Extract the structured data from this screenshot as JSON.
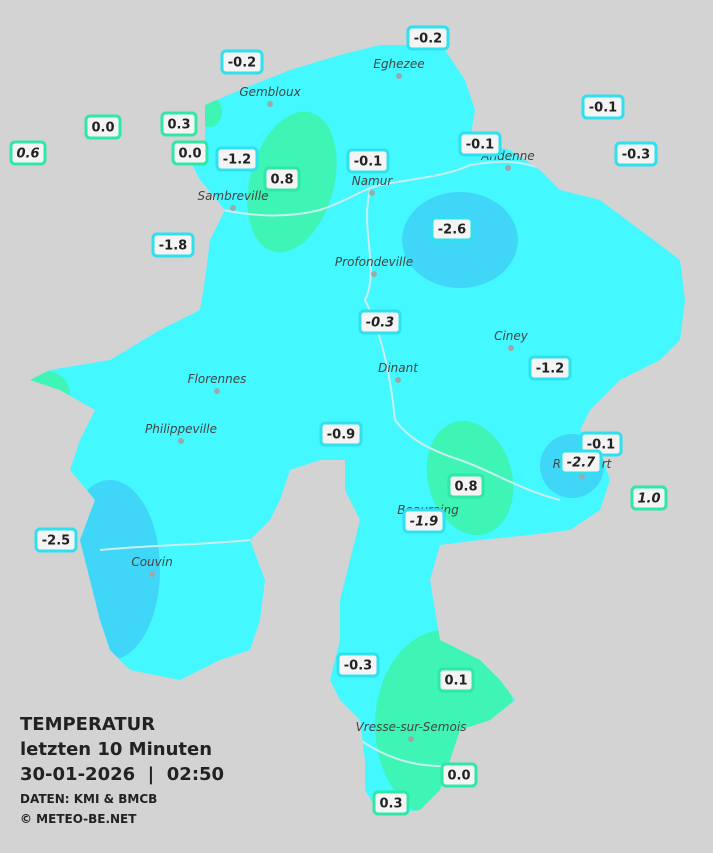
{
  "title": {
    "lines": [
      "TEMPERATUR",
      "letzten 10 Minuten",
      "30-01-2026  |  02:50"
    ]
  },
  "credits": [
    "DATEN: KMI & BMCB",
    "© METEO-BE.NET"
  ],
  "cities": [
    "Eghezee",
    "Gembloux",
    "Andenne",
    "Namur",
    "Sambreville",
    "Profondeville",
    "Ciney",
    "Dinant",
    "Florennes",
    "Philippeville",
    "Beauraing",
    "Rochefort",
    "Couvin",
    "Vresse-sur-Semois"
  ],
  "stations": [
    {
      "value": "-0.2",
      "border": "#2fe0ee",
      "italic": false
    },
    {
      "value": "-0.2",
      "border": "#2fe0ee",
      "italic": false
    },
    {
      "value": "0.0",
      "border": "#2fe8a6",
      "italic": false
    },
    {
      "value": "0.3",
      "border": "#2fe8a6",
      "italic": false
    },
    {
      "value": "0.0",
      "border": "#2fe8a6",
      "italic": false
    },
    {
      "value": "-1.2",
      "border": "#2fe0ee",
      "italic": false
    },
    {
      "value": "0.8",
      "border": "#2fe8a6",
      "italic": false
    },
    {
      "value": "-0.1",
      "border": "#2fe0ee",
      "italic": false
    },
    {
      "value": "-0.1",
      "border": "#2fe0ee",
      "italic": false
    },
    {
      "value": "-0.1",
      "border": "#2fe0ee",
      "italic": false
    },
    {
      "value": "-0.3",
      "border": "#2fe0ee",
      "italic": false
    },
    {
      "value": "0.6",
      "border": "#2fe8a6",
      "italic": true
    },
    {
      "value": "-2.6",
      "border": "#2fe0ee",
      "italic": false
    },
    {
      "value": "-1.8",
      "border": "#2fe0ee",
      "italic": false
    },
    {
      "value": "-0.3",
      "border": "#2fe0ee",
      "italic": true
    },
    {
      "value": "-1.2",
      "border": "#2fe0ee",
      "italic": false
    },
    {
      "value": "-0.9",
      "border": "#2fe0ee",
      "italic": false
    },
    {
      "value": "-0.1",
      "border": "#2fe0ee",
      "italic": false
    },
    {
      "value": "-2.7",
      "border": "#2fe0ee",
      "italic": true
    },
    {
      "value": "1.0",
      "border": "#2fe8a6",
      "italic": true
    },
    {
      "value": "0.8",
      "border": "#2fe8a6",
      "italic": false
    },
    {
      "value": "-1.9",
      "border": "#2fe0ee",
      "italic": true
    },
    {
      "value": "-2.5",
      "border": "#2fe0ee",
      "italic": false
    },
    {
      "value": "-0.3",
      "border": "#2fe0ee",
      "italic": false
    },
    {
      "value": "0.1",
      "border": "#2fe8a6",
      "italic": false
    },
    {
      "value": "0.0",
      "border": "#2fe8a6",
      "italic": false
    },
    {
      "value": "0.3",
      "border": "#2fe8a6",
      "italic": false
    }
  ]
}
